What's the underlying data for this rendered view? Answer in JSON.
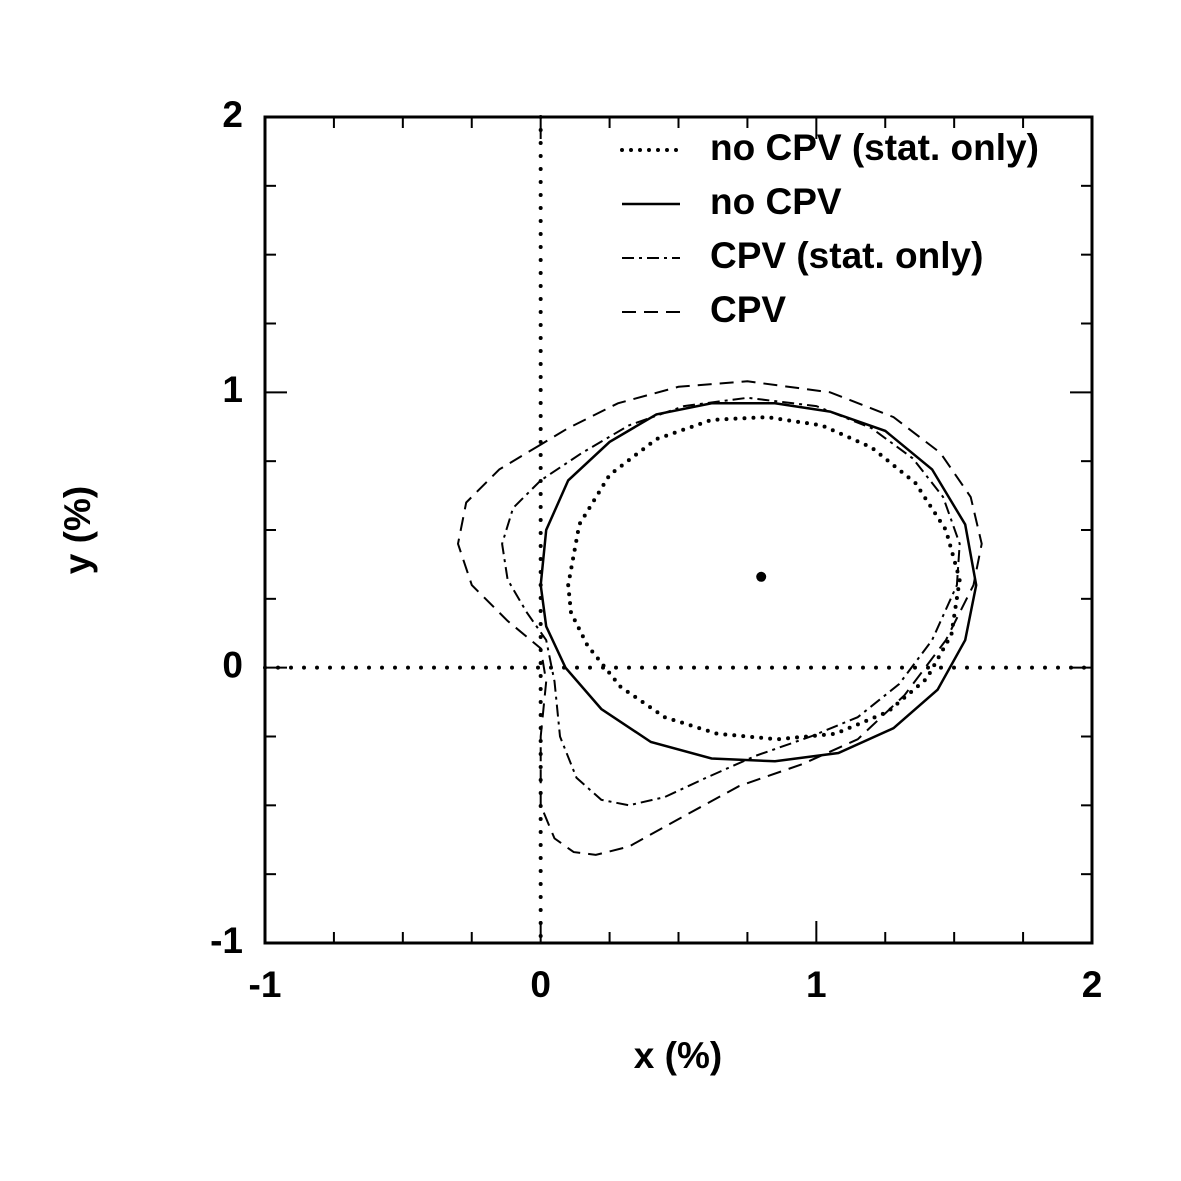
{
  "chart_data": {
    "type": "contour",
    "xlabel": "x (%)",
    "ylabel": "y (%)",
    "xlim": [
      -1,
      2
    ],
    "ylim": [
      -1,
      2
    ],
    "xticks": [
      -1,
      0,
      1,
      2
    ],
    "yticks": [
      -1,
      0,
      1,
      2
    ],
    "xminorticks": [
      -0.75,
      -0.5,
      -0.25,
      0.25,
      0.5,
      0.75,
      1.25,
      1.5,
      1.75
    ],
    "yminorticks": [
      -0.75,
      -0.5,
      -0.25,
      0.25,
      0.5,
      0.75,
      1.25,
      1.5,
      1.75
    ],
    "ref_lines": [
      {
        "axis": "x",
        "value": 0
      },
      {
        "axis": "y",
        "value": 0
      }
    ],
    "marker": {
      "x": 0.8,
      "y": 0.33
    },
    "legend": "upper right",
    "series": [
      {
        "name": "no CPV (stat. only)",
        "color": "#000000",
        "style": "dotted",
        "x": [
          0.1,
          0.14,
          0.25,
          0.42,
          0.62,
          0.82,
          1.02,
          1.2,
          1.36,
          1.47,
          1.52,
          1.49,
          1.4,
          1.26,
          1.07,
          0.86,
          0.64,
          0.45,
          0.29,
          0.17,
          0.11,
          0.1
        ],
        "y": [
          0.3,
          0.52,
          0.7,
          0.83,
          0.9,
          0.91,
          0.88,
          0.8,
          0.67,
          0.5,
          0.32,
          0.12,
          -0.04,
          -0.16,
          -0.24,
          -0.26,
          -0.24,
          -0.18,
          -0.07,
          0.08,
          0.2,
          0.3
        ]
      },
      {
        "name": "no CPV",
        "color": "#000000",
        "style": "solid",
        "x": [
          0.0,
          0.02,
          0.1,
          0.25,
          0.42,
          0.62,
          0.85,
          1.05,
          1.25,
          1.42,
          1.54,
          1.58,
          1.54,
          1.44,
          1.28,
          1.08,
          0.85,
          0.62,
          0.4,
          0.22,
          0.09,
          0.02,
          0.0
        ],
        "y": [
          0.3,
          0.5,
          0.68,
          0.82,
          0.92,
          0.96,
          0.96,
          0.93,
          0.86,
          0.72,
          0.52,
          0.3,
          0.1,
          -0.08,
          -0.22,
          -0.31,
          -0.34,
          -0.33,
          -0.27,
          -0.15,
          0.0,
          0.15,
          0.3
        ]
      },
      {
        "name": "CPV (stat. only)",
        "color": "#000000",
        "style": "dashdot",
        "x": [
          0.0,
          -0.1,
          -0.14,
          -0.12,
          -0.05,
          0.02,
          0.05,
          0.07,
          0.13,
          0.22,
          0.32,
          0.45,
          0.6,
          0.78,
          0.98,
          1.15,
          1.3,
          1.42,
          1.51,
          1.52,
          1.46,
          1.35,
          1.2,
          1.0,
          0.75,
          0.52,
          0.32,
          0.15,
          0.0
        ],
        "y": [
          0.68,
          0.58,
          0.45,
          0.32,
          0.2,
          0.1,
          -0.05,
          -0.25,
          -0.4,
          -0.48,
          -0.5,
          -0.47,
          -0.4,
          -0.32,
          -0.25,
          -0.18,
          -0.06,
          0.1,
          0.3,
          0.45,
          0.62,
          0.76,
          0.87,
          0.95,
          0.98,
          0.95,
          0.88,
          0.78,
          0.68
        ]
      },
      {
        "name": "CPV",
        "color": "#000000",
        "style": "dashed",
        "x": [
          0.0,
          -0.15,
          -0.27,
          -0.3,
          -0.25,
          -0.12,
          0.0,
          0.02,
          0.0,
          0.0,
          0.05,
          0.12,
          0.2,
          0.32,
          0.5,
          0.72,
          0.95,
          1.15,
          1.32,
          1.47,
          1.57,
          1.6,
          1.56,
          1.45,
          1.28,
          1.05,
          0.75,
          0.5,
          0.28,
          0.1,
          0.0
        ],
        "y": [
          0.81,
          0.72,
          0.6,
          0.45,
          0.3,
          0.17,
          0.07,
          -0.05,
          -0.25,
          -0.5,
          -0.62,
          -0.67,
          -0.68,
          -0.65,
          -0.55,
          -0.43,
          -0.35,
          -0.26,
          -0.1,
          0.1,
          0.3,
          0.45,
          0.62,
          0.78,
          0.91,
          1.0,
          1.04,
          1.02,
          0.96,
          0.87,
          0.81
        ]
      }
    ]
  }
}
